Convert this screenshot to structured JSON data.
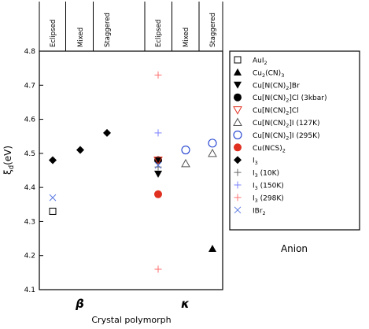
{
  "chart_data": {
    "type": "scatter",
    "title": "",
    "xlabel": "Crystal polymorph",
    "ylabel": "ξ_d(eV)",
    "ylabel_main": "ξ",
    "ylabel_sub": "d",
    "ylabel_unit": "(eV)",
    "ylim": [
      4.1,
      4.8
    ],
    "yticks": [
      "4.1",
      "4.2",
      "4.3",
      "4.4",
      "4.5",
      "4.6",
      "4.7",
      "4.8"
    ],
    "xticks_top": [
      "Eclipsed",
      "Mixed",
      "Staggered",
      "Eclipsed",
      "Mixed",
      "Staggered"
    ],
    "group_labels": [
      "β",
      "κ"
    ],
    "grid": false,
    "legend_position": "right",
    "legend_title": "Anion",
    "series": [
      {
        "name": "AuI2",
        "label_main": "AuI",
        "label_sub": "2",
        "marker": "square-open",
        "color": "#000000",
        "points": [
          {
            "x": 1,
            "y": 4.33
          }
        ]
      },
      {
        "name": "Cu2(CN)3",
        "label_main": "Cu",
        "label_sub": "2",
        "label_tail": "(CN)",
        "label_sub2": "3",
        "marker": "triangle-up-filled",
        "color": "#000000",
        "points": [
          {
            "x": 6,
            "y": 4.22
          }
        ]
      },
      {
        "name": "Cu[N(CN)2]Br",
        "label_main": "Cu[N(CN)",
        "label_sub": "2",
        "label_tail": "]Br",
        "marker": "triangle-down-filled",
        "color": "#000000",
        "points": [
          {
            "x": 4,
            "y": 4.44
          }
        ]
      },
      {
        "name": "Cu[N(CN)2]Cl (3kbar)",
        "label_main": "Cu[N(CN)",
        "label_sub": "2",
        "label_tail": "]Cl (3kbar)",
        "marker": "circle-filled",
        "color": "#000000",
        "points": [
          {
            "x": 4,
            "y": 4.48
          }
        ]
      },
      {
        "name": "Cu[N(CN)2]Cl",
        "label_main": "Cu[N(CN)",
        "label_sub": "2",
        "label_tail": "]Cl",
        "marker": "triangle-down-open",
        "color": "#e03020",
        "points": [
          {
            "x": 4,
            "y": 4.48
          }
        ]
      },
      {
        "name": "Cu[N(CN)2]I (127K)",
        "label_main": "Cu[N(CN)",
        "label_sub": "2",
        "label_tail": "]I (127K)",
        "marker": "triangle-up-open",
        "color": "#555555",
        "points": [
          {
            "x": 5,
            "y": 4.47
          },
          {
            "x": 6,
            "y": 4.5
          }
        ]
      },
      {
        "name": "Cu[N(CN)2]I (295K)",
        "label_main": "Cu[N(CN)",
        "label_sub": "2",
        "label_tail": "]I (295K)",
        "marker": "circle-open",
        "color": "#2040d0",
        "points": [
          {
            "x": 5,
            "y": 4.51
          },
          {
            "x": 6,
            "y": 4.53
          }
        ]
      },
      {
        "name": "Cu(NCS)2",
        "label_main": "Cu(NCS)",
        "label_sub": "2",
        "marker": "circle-filled",
        "color": "#e03020",
        "points": [
          {
            "x": 4,
            "y": 4.38
          }
        ]
      },
      {
        "name": "I3",
        "label_main": "I",
        "label_sub": "3",
        "marker": "diamond-filled",
        "color": "#000000",
        "points": [
          {
            "x": 1,
            "y": 4.48
          },
          {
            "x": 2,
            "y": 4.51
          },
          {
            "x": 3,
            "y": 4.56
          }
        ]
      },
      {
        "name": "I3 (10K)",
        "label_main": "I",
        "label_sub": "3",
        "label_tail": " (10K)",
        "marker": "plus",
        "color": "#666666",
        "points": [
          {
            "x": 4,
            "y": 4.46
          }
        ]
      },
      {
        "name": "I3 (150K)",
        "label_main": "I",
        "label_sub": "3",
        "label_tail": " (150K)",
        "marker": "plus",
        "color": "#7a80ff",
        "points": [
          {
            "x": 4,
            "y": 4.56
          }
        ]
      },
      {
        "name": "I3 (298K)",
        "label_main": "I",
        "label_sub": "3",
        "label_tail": " (298K)",
        "marker": "plus",
        "color": "#ff7070",
        "points": [
          {
            "x": 4,
            "y": 4.73
          },
          {
            "x": 4,
            "y": 4.16
          }
        ]
      },
      {
        "name": "IBr2",
        "label_main": "IBr",
        "label_sub": "2",
        "marker": "cross",
        "color": "#5a78e0",
        "points": [
          {
            "x": 1,
            "y": 4.37
          },
          {
            "x": 4,
            "y": 4.465
          }
        ]
      }
    ]
  }
}
